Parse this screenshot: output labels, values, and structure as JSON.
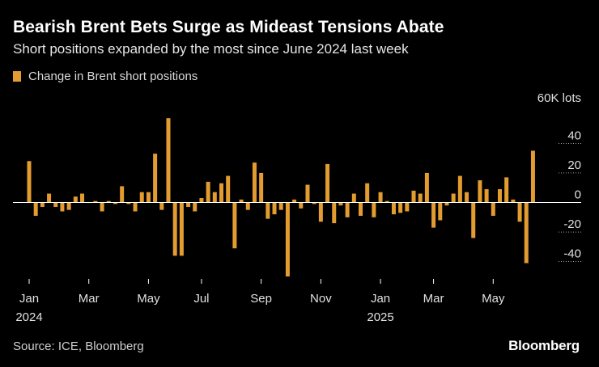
{
  "header": {
    "title": "Bearish Brent Bets Surge as Mideast Tensions Abate",
    "subtitle": "Short positions expanded by the most since June 2024 last week"
  },
  "footer": {
    "source": "Source: ICE, Bloomberg",
    "brand": "Bloomberg"
  },
  "colors": {
    "bar": "#e39c2f",
    "background": "#000000",
    "zero_line": "#ffffff",
    "grid": "#ffffff"
  },
  "chart_data": {
    "type": "bar",
    "title": "Bearish Brent Bets Surge as Mideast Tensions Abate",
    "legend": [
      "Change in Brent short positions"
    ],
    "legend_position": "top-left",
    "ylabel": "60K lots",
    "unit_label": "60K lots",
    "ylim": [
      -50,
      60
    ],
    "yticks": [
      40,
      20,
      0,
      -20,
      -40
    ],
    "xlabel": "",
    "x_tick_labels": [
      {
        "label": "Jan",
        "year": "2024",
        "week": 0
      },
      {
        "label": "Mar",
        "year": "",
        "week": 9
      },
      {
        "label": "May",
        "year": "",
        "week": 18
      },
      {
        "label": "Jul",
        "year": "",
        "week": 26
      },
      {
        "label": "Sep",
        "year": "",
        "week": 35
      },
      {
        "label": "Nov",
        "year": "",
        "week": 44
      },
      {
        "label": "Jan",
        "year": "2025",
        "week": 53
      },
      {
        "label": "Mar",
        "year": "",
        "week": 61
      },
      {
        "label": "May",
        "year": "",
        "week": 70
      }
    ],
    "series": [
      {
        "name": "Change in Brent short positions",
        "values": [
          28,
          -9,
          -3,
          6,
          -3,
          -6,
          -5,
          4,
          6,
          0,
          1,
          -6,
          1,
          -1,
          11,
          -1,
          -6,
          7,
          7,
          33,
          -5,
          57,
          -36,
          -36,
          -3,
          -6,
          3,
          14,
          7,
          13,
          18,
          -31,
          2,
          -5,
          27,
          20,
          -11,
          -8,
          -5,
          -50,
          2,
          -4,
          12,
          -1,
          -13,
          26,
          -14,
          -2,
          -10,
          6,
          -9,
          13,
          -10,
          7,
          1,
          -8,
          -7,
          -6,
          8,
          6,
          20,
          -17,
          -12,
          -2,
          6,
          18,
          7,
          -24,
          15,
          9,
          -9,
          9,
          17,
          2,
          -13,
          -41,
          35
        ]
      }
    ]
  }
}
